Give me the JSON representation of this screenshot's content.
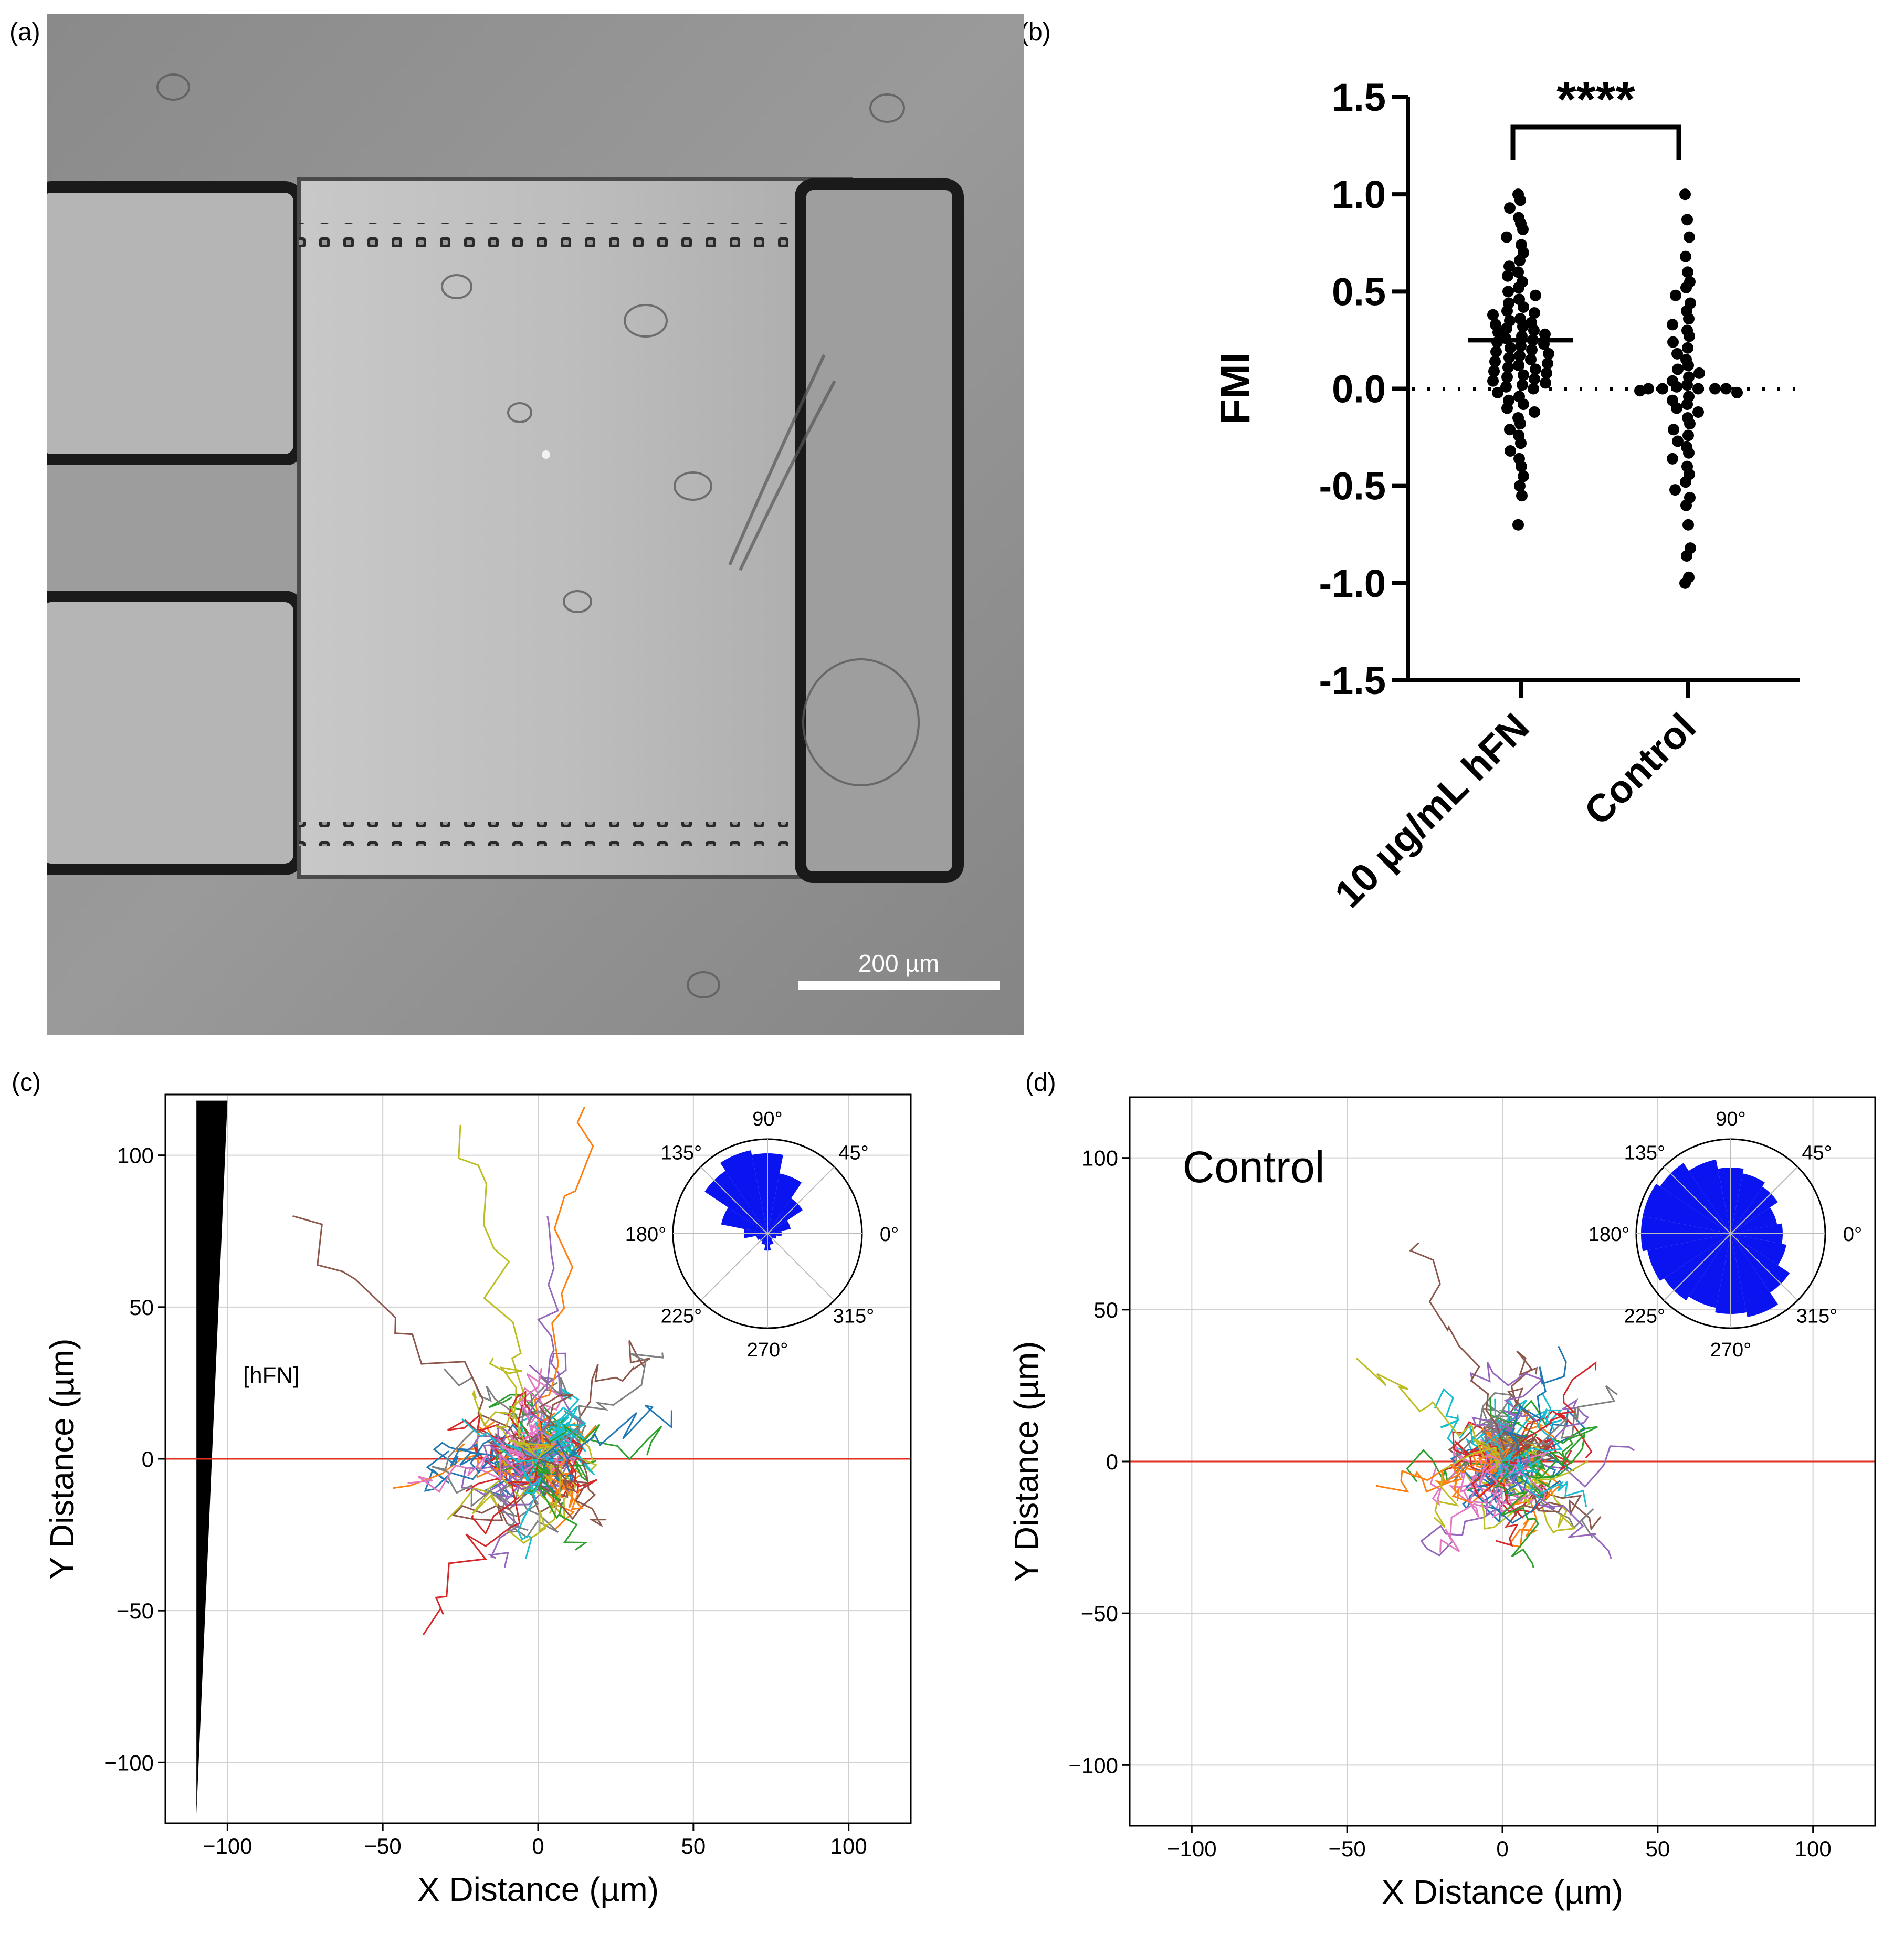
{
  "panel_labels": {
    "a": "(a)",
    "b": "(b)",
    "c": "(c)",
    "d": "(d)"
  },
  "panel_a": {
    "scale_bar_label": "200 µm"
  },
  "panel_b": {
    "y_axis_label": "FMI",
    "y_ticks": [
      "1.5",
      "1.0",
      "0.5",
      "0.0",
      "-0.5",
      "-1.0",
      "-1.5"
    ],
    "categories": [
      "10 µg/mL hFN",
      "Control"
    ],
    "significance": "****"
  },
  "panel_c": {
    "x_label": "X Distance (µm)",
    "y_label": "Y Distance (µm)",
    "x_ticks": [
      "−100",
      "−50",
      "0",
      "50",
      "100"
    ],
    "y_ticks": [
      "100",
      "50",
      "0",
      "−50",
      "−100"
    ],
    "annotation": "[hFN]",
    "rose_labels": [
      "90°",
      "45°",
      "0°",
      "315°",
      "270°",
      "225°",
      "180°",
      "135°"
    ]
  },
  "panel_d": {
    "x_label": "X Distance (µm)",
    "y_label": "Y Distance (µm)",
    "x_ticks": [
      "−100",
      "−50",
      "0",
      "50",
      "100"
    ],
    "y_ticks": [
      "100",
      "50",
      "0",
      "−50",
      "−100"
    ],
    "annotation": "Control",
    "rose_labels": [
      "90°",
      "45°",
      "0°",
      "315°",
      "270°",
      "225°",
      "180°",
      "135°"
    ]
  },
  "chart_data": [
    {
      "type": "scatter",
      "ylabel": "FMI",
      "ylim": [
        -1.5,
        1.5
      ],
      "categories": [
        "10 µg/mL hFN",
        "Control"
      ],
      "mean_lines": [
        0.25,
        0.0
      ],
      "reference_line": 0.0,
      "annotation": "****",
      "series": [
        {
          "name": "10 µg/mL hFN",
          "values": [
            1.0,
            0.97,
            0.93,
            0.88,
            0.85,
            0.82,
            0.78,
            0.74,
            0.7,
            0.66,
            0.63,
            0.6,
            0.58,
            0.55,
            0.52,
            0.5,
            0.48,
            0.46,
            0.44,
            0.42,
            0.4,
            0.39,
            0.38,
            0.36,
            0.35,
            0.34,
            0.33,
            0.32,
            0.31,
            0.3,
            0.29,
            0.28,
            0.27,
            0.26,
            0.25,
            0.24,
            0.23,
            0.22,
            0.21,
            0.2,
            0.19,
            0.18,
            0.17,
            0.16,
            0.15,
            0.14,
            0.13,
            0.12,
            0.11,
            0.1,
            0.09,
            0.08,
            0.07,
            0.06,
            0.05,
            0.04,
            0.03,
            0.02,
            0.01,
            0.0,
            -0.02,
            -0.04,
            -0.06,
            -0.08,
            -0.1,
            -0.12,
            -0.15,
            -0.18,
            -0.21,
            -0.24,
            -0.28,
            -0.32,
            -0.36,
            -0.4,
            -0.45,
            -0.5,
            -0.55,
            -0.7
          ]
        },
        {
          "name": "Control",
          "values": [
            1.0,
            0.87,
            0.78,
            0.68,
            0.6,
            0.55,
            0.52,
            0.48,
            0.44,
            0.4,
            0.36,
            0.33,
            0.3,
            0.27,
            0.24,
            0.21,
            0.18,
            0.15,
            0.12,
            0.1,
            0.08,
            0.06,
            0.04,
            0.02,
            0.01,
            0.0,
            0.0,
            0.0,
            0.0,
            0.0,
            -0.01,
            -0.02,
            -0.04,
            -0.06,
            -0.08,
            -0.1,
            -0.12,
            -0.15,
            -0.18,
            -0.21,
            -0.24,
            -0.27,
            -0.3,
            -0.33,
            -0.36,
            -0.4,
            -0.44,
            -0.48,
            -0.52,
            -0.56,
            -0.6,
            -0.7,
            -0.82,
            -0.86,
            -0.97,
            -1.0
          ]
        }
      ]
    },
    {
      "type": "line",
      "xlabel": "X Distance (µm)",
      "ylabel": "Y Distance (µm)",
      "xlim": [
        -120,
        120
      ],
      "ylim": [
        -120,
        120
      ],
      "grid": true,
      "reference_line_y": 0,
      "annotation": "[hFN]",
      "inset": {
        "type": "polar-rose",
        "dominant_direction_deg": 90,
        "bins_deg": [
          0,
          22.5,
          45,
          67.5,
          90,
          112.5,
          135,
          157.5,
          180,
          202.5,
          225,
          247.5,
          270,
          292.5,
          315,
          337.5
        ],
        "relative_counts": [
          0.15,
          0.25,
          0.45,
          0.65,
          0.85,
          0.9,
          0.8,
          0.5,
          0.25,
          0.12,
          0.1,
          0.12,
          0.18,
          0.12,
          0.08,
          0.1
        ]
      },
      "track_endpoints": [
        [
          -79,
          80
        ],
        [
          -25,
          110
        ],
        [
          15,
          116
        ],
        [
          3,
          80
        ],
        [
          40,
          35
        ],
        [
          43,
          16
        ],
        [
          -37,
          -58
        ],
        [
          -42,
          -8
        ],
        [
          -4,
          -33
        ],
        [
          12,
          -30
        ],
        [
          22,
          -20
        ],
        [
          -20,
          20
        ]
      ]
    },
    {
      "type": "line",
      "xlabel": "X Distance (µm)",
      "ylabel": "Y Distance (µm)",
      "xlim": [
        -120,
        120
      ],
      "ylim": [
        -120,
        120
      ],
      "grid": true,
      "reference_line_y": 0,
      "annotation": "Control",
      "inset": {
        "type": "polar-rose",
        "dominant_direction_deg": null,
        "bins_deg": [
          0,
          22.5,
          45,
          67.5,
          90,
          112.5,
          135,
          157.5,
          180,
          202.5,
          225,
          247.5,
          270,
          292.5,
          315,
          337.5
        ],
        "relative_counts": [
          0.55,
          0.5,
          0.6,
          0.65,
          0.7,
          0.8,
          0.9,
          0.95,
          0.95,
          0.9,
          0.85,
          0.8,
          0.85,
          0.9,
          0.75,
          0.6
        ]
      },
      "track_endpoints": [
        [
          -27,
          72
        ],
        [
          -47,
          34
        ],
        [
          -40,
          -8
        ],
        [
          35,
          -32
        ],
        [
          37,
          22
        ],
        [
          18,
          38
        ],
        [
          30,
          30
        ],
        [
          -20,
          -30
        ],
        [
          27,
          -15
        ],
        [
          10,
          -35
        ]
      ]
    }
  ]
}
